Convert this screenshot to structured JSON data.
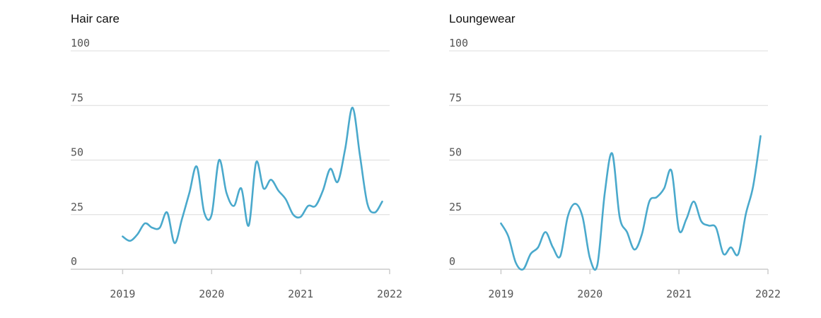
{
  "colors": {
    "line": "#4aa9cc",
    "grid": "#dcdcdc",
    "text": "#111111",
    "tick": "#555555"
  },
  "chart_data": [
    {
      "type": "line",
      "title": "Hair care",
      "xlabel": "",
      "ylabel": "",
      "ylim": [
        0,
        100
      ],
      "xlim": [
        "2018-06",
        "2022-01"
      ],
      "yticks": [
        0,
        25,
        50,
        75,
        100
      ],
      "xticks": [
        "2019",
        "2020",
        "2021",
        "2022"
      ],
      "grid": true,
      "series": [
        {
          "x": [
            "2019-01",
            "2019-02",
            "2019-03",
            "2019-04",
            "2019-05",
            "2019-06",
            "2019-07",
            "2019-08",
            "2019-09",
            "2019-10",
            "2019-11",
            "2019-12",
            "2020-01",
            "2020-02",
            "2020-03",
            "2020-04",
            "2020-05",
            "2020-06",
            "2020-07",
            "2020-08",
            "2020-09",
            "2020-10",
            "2020-11",
            "2020-12",
            "2021-01",
            "2021-02",
            "2021-03",
            "2021-04",
            "2021-05",
            "2021-06",
            "2021-07",
            "2021-08",
            "2021-09",
            "2021-10",
            "2021-11",
            "2021-12"
          ],
          "values": [
            15,
            13,
            16,
            21,
            19,
            19,
            26,
            12,
            23,
            35,
            47,
            26,
            25,
            50,
            35,
            29,
            37,
            20,
            49,
            37,
            41,
            36,
            32,
            25,
            24,
            29,
            29,
            36,
            46,
            40,
            55,
            74,
            52,
            30,
            26,
            31
          ]
        }
      ]
    },
    {
      "type": "line",
      "title": "Loungewear",
      "xlabel": "",
      "ylabel": "",
      "ylim": [
        0,
        100
      ],
      "xlim": [
        "2018-06",
        "2022-01"
      ],
      "yticks": [
        0,
        25,
        50,
        75,
        100
      ],
      "xticks": [
        "2019",
        "2020",
        "2021",
        "2022"
      ],
      "grid": true,
      "series": [
        {
          "x": [
            "2019-01",
            "2019-02",
            "2019-03",
            "2019-04",
            "2019-05",
            "2019-06",
            "2019-07",
            "2019-08",
            "2019-09",
            "2019-10",
            "2019-11",
            "2019-12",
            "2020-01",
            "2020-02",
            "2020-03",
            "2020-04",
            "2020-05",
            "2020-06",
            "2020-07",
            "2020-08",
            "2020-09",
            "2020-10",
            "2020-11",
            "2020-12",
            "2021-01",
            "2021-02",
            "2021-03",
            "2021-04",
            "2021-05",
            "2021-06",
            "2021-07",
            "2021-08",
            "2021-09",
            "2021-10",
            "2021-11",
            "2021-12"
          ],
          "values": [
            21,
            15,
            3,
            0,
            7,
            10,
            17,
            10,
            6,
            24,
            30,
            24,
            5,
            2,
            35,
            53,
            24,
            17,
            9,
            16,
            31,
            33,
            37,
            45,
            18,
            23,
            31,
            22,
            20,
            19,
            7,
            10,
            7,
            25,
            38,
            61
          ]
        }
      ]
    }
  ]
}
